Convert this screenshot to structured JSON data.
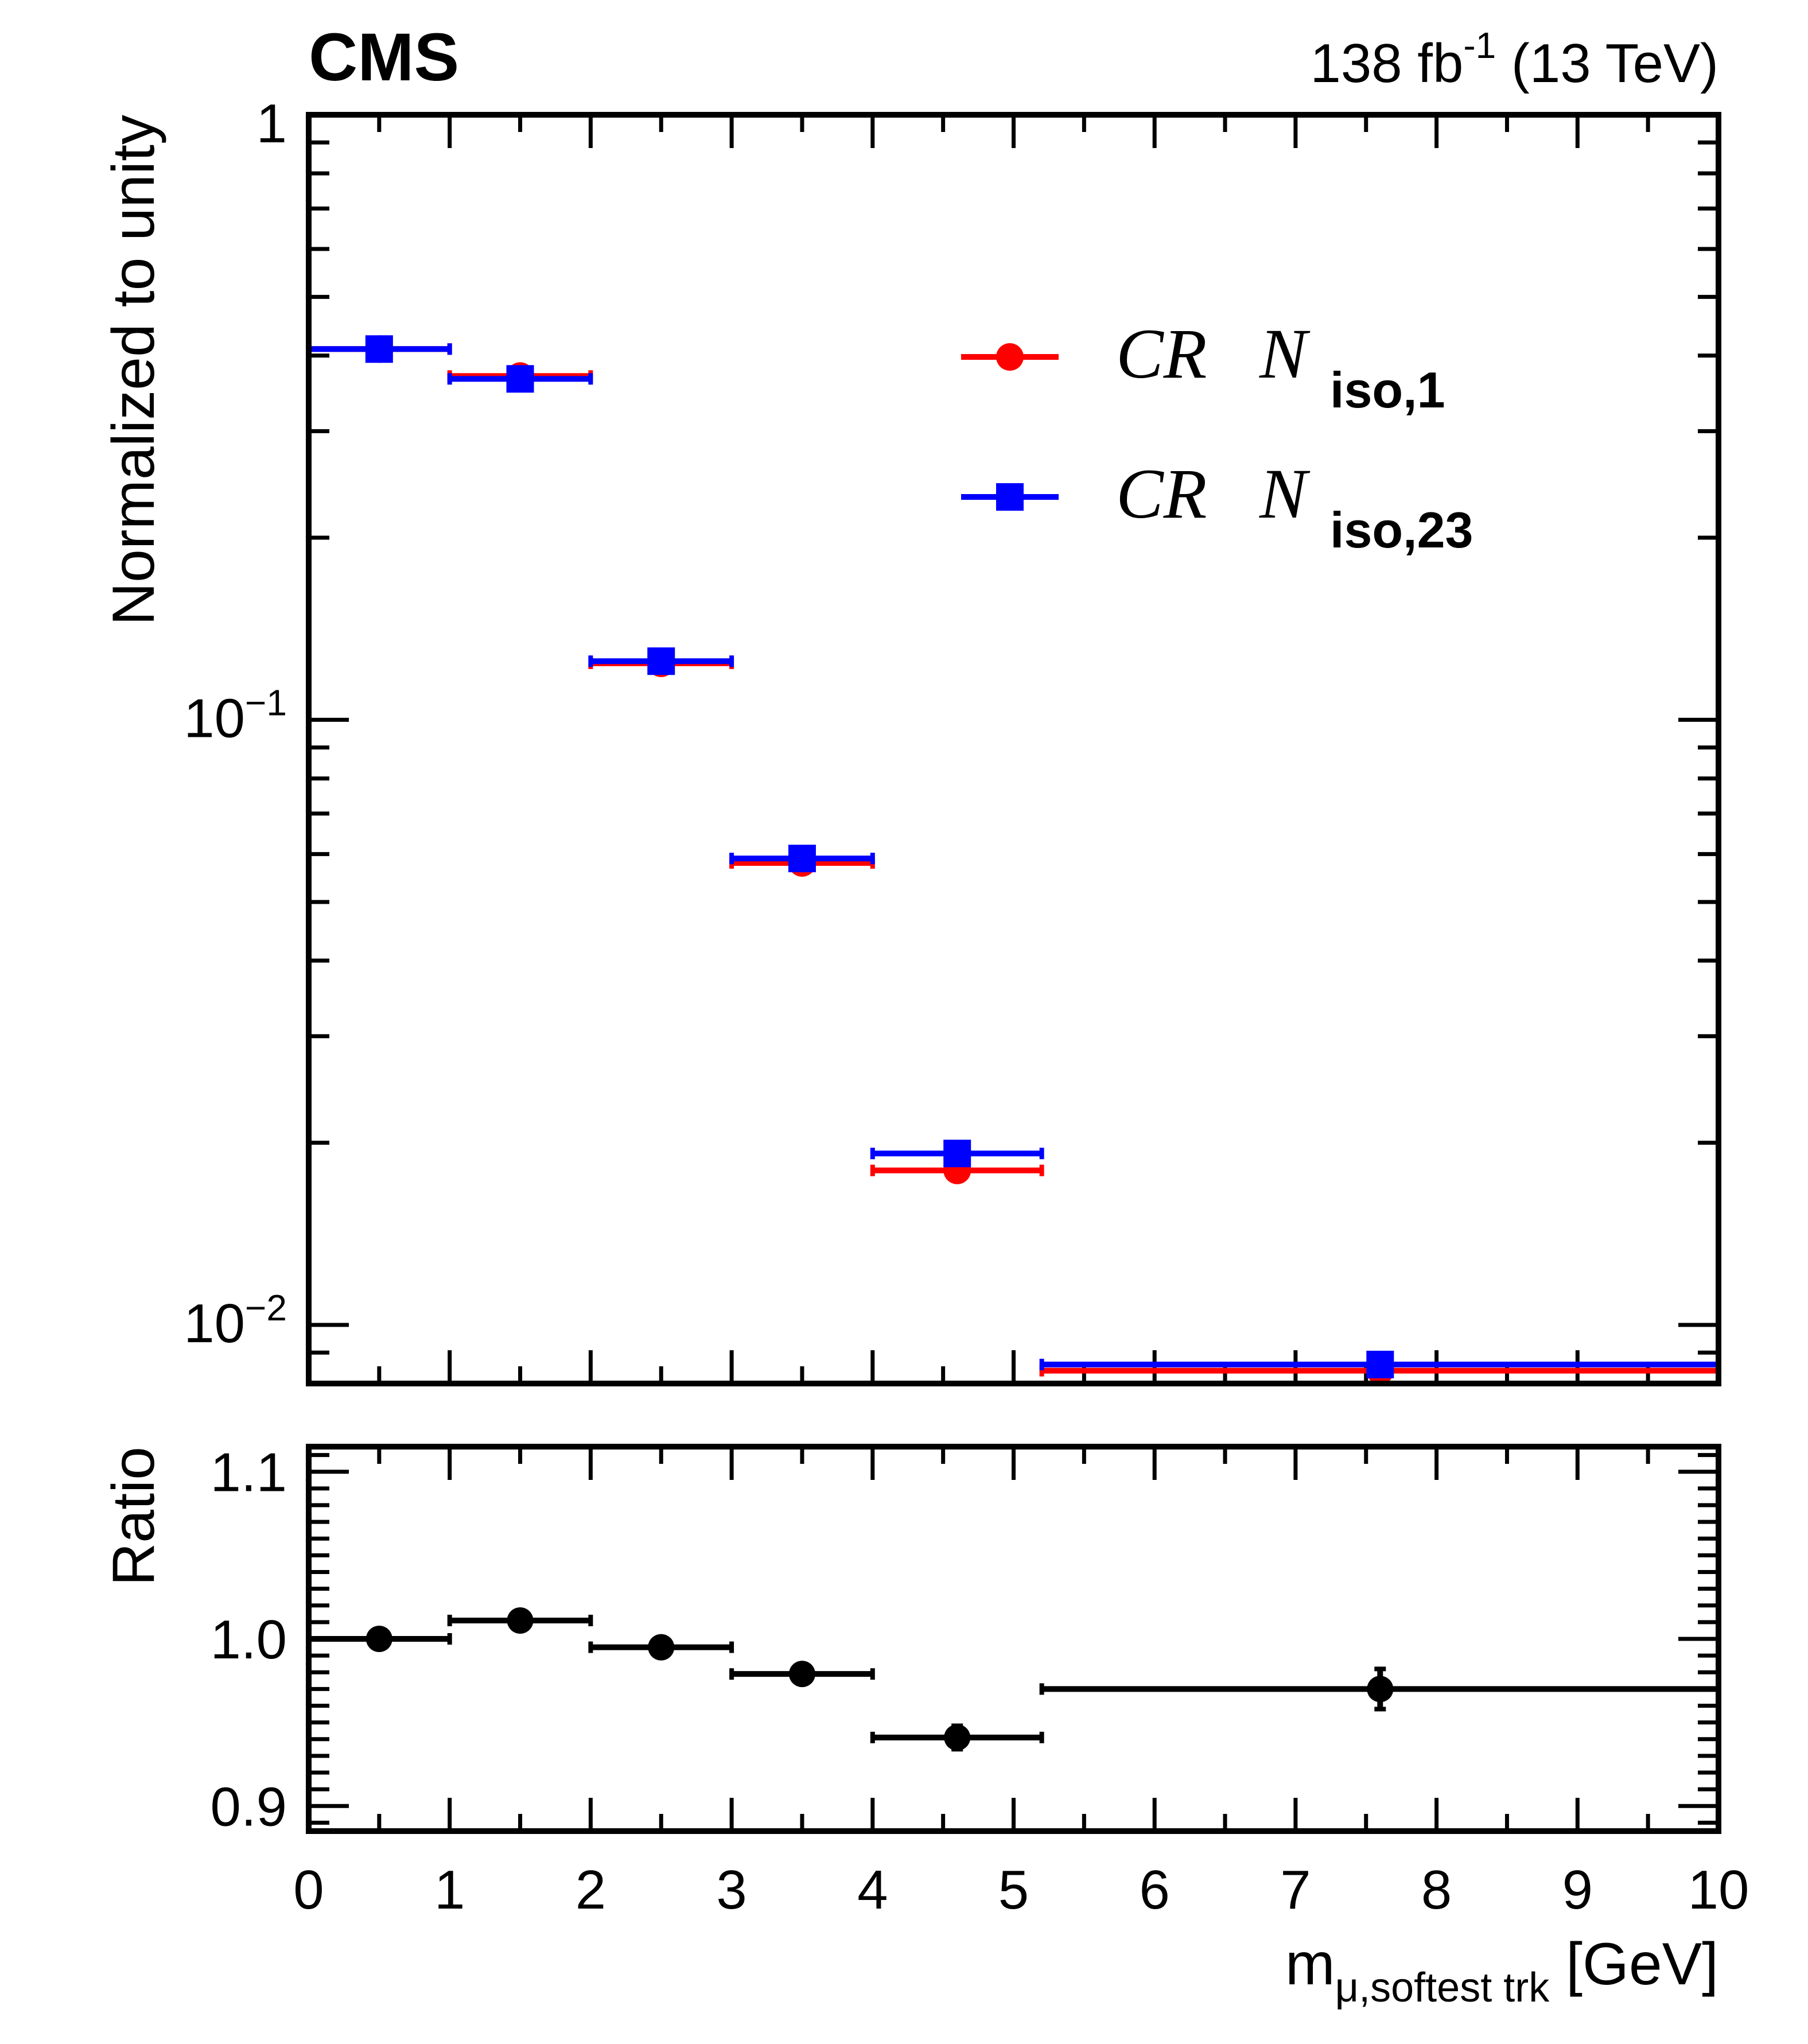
{
  "header": {
    "experiment": "CMS",
    "lumi_value": "138 fb",
    "lumi_exp": "-1",
    "energy": " (13 TeV)"
  },
  "chart_data": [
    {
      "type": "scatter",
      "panel": "main",
      "yscale": "log",
      "ylabel": "Normalized to unity",
      "xlim": [
        0,
        10
      ],
      "ylim": [
        0.008,
        1
      ],
      "y_tick_labels": [
        {
          "value": 1,
          "base": "1",
          "exp": ""
        },
        {
          "value": 0.1,
          "base": "10",
          "exp": "−1"
        },
        {
          "value": 0.01,
          "base": "10",
          "exp": "−2"
        }
      ],
      "legend": {
        "position": "top-right",
        "entries": [
          {
            "series": 0,
            "prefix": "CR",
            "var": "N",
            "sub": "iso,1",
            "marker": "circle"
          },
          {
            "series": 1,
            "prefix": "CR",
            "var": "N",
            "sub": "iso,23",
            "marker": "square"
          }
        ]
      },
      "series": [
        {
          "name": "CR N iso,1",
          "color": "#ff0000",
          "marker": "circle",
          "points": [
            {
              "x": 0.5,
              "xlo": 0,
              "xhi": 1,
              "y": 0.41
            },
            {
              "x": 1.5,
              "xlo": 1,
              "xhi": 2,
              "y": 0.37
            },
            {
              "x": 2.5,
              "xlo": 2,
              "xhi": 3,
              "y": 0.124
            },
            {
              "x": 3.5,
              "xlo": 3,
              "xhi": 4,
              "y": 0.058
            },
            {
              "x": 4.6,
              "xlo": 4,
              "xhi": 5.2,
              "y": 0.018
            },
            {
              "x": 7.6,
              "xlo": 5.2,
              "xhi": 10,
              "y": 0.0084
            }
          ]
        },
        {
          "name": "CR N iso,23",
          "color": "#0000ff",
          "marker": "square",
          "points": [
            {
              "x": 0.5,
              "xlo": 0,
              "xhi": 1,
              "y": 0.41
            },
            {
              "x": 1.5,
              "xlo": 1,
              "xhi": 2,
              "y": 0.366
            },
            {
              "x": 2.5,
              "xlo": 2,
              "xhi": 3,
              "y": 0.125
            },
            {
              "x": 3.5,
              "xlo": 3,
              "xhi": 4,
              "y": 0.059
            },
            {
              "x": 4.6,
              "xlo": 4,
              "xhi": 5.2,
              "y": 0.0192
            },
            {
              "x": 7.6,
              "xlo": 5.2,
              "xhi": 10,
              "y": 0.0086
            }
          ]
        }
      ]
    },
    {
      "type": "scatter",
      "panel": "ratio",
      "ylabel": "Ratio",
      "xlabel_main": "m",
      "xlabel_sub": "μ,softest trk",
      "xlabel_unit": " [GeV]",
      "xlim": [
        0,
        10
      ],
      "ylim": [
        0.885,
        1.115
      ],
      "y_tick_labels": [
        "0.9",
        "1.0",
        "1.1"
      ],
      "y_tick_values": [
        0.9,
        1.0,
        1.1
      ],
      "x_tick_labels": [
        "0",
        "1",
        "2",
        "3",
        "4",
        "5",
        "6",
        "7",
        "8",
        "9",
        "10"
      ],
      "x_tick_values": [
        0,
        1,
        2,
        3,
        4,
        5,
        6,
        7,
        8,
        9,
        10
      ],
      "color": "#000000",
      "points": [
        {
          "x": 0.5,
          "xlo": 0,
          "xhi": 1,
          "y": 1.0,
          "err": 0
        },
        {
          "x": 1.5,
          "xlo": 1,
          "xhi": 2,
          "y": 1.011,
          "err": 0
        },
        {
          "x": 2.5,
          "xlo": 2,
          "xhi": 3,
          "y": 0.995,
          "err": 0
        },
        {
          "x": 3.5,
          "xlo": 3,
          "xhi": 4,
          "y": 0.979,
          "err": 0
        },
        {
          "x": 4.6,
          "xlo": 4,
          "xhi": 5.2,
          "y": 0.941,
          "err": 0.007
        },
        {
          "x": 7.6,
          "xlo": 5.2,
          "xhi": 10,
          "y": 0.97,
          "err": 0.012
        }
      ]
    }
  ]
}
